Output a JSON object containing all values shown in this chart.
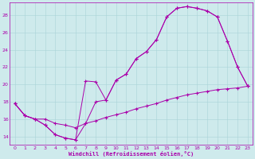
{
  "title": "",
  "xlabel": "Windchill (Refroidissement éolien,°C)",
  "xlim": [
    -0.5,
    23.5
  ],
  "ylim": [
    13.0,
    29.5
  ],
  "xticks": [
    0,
    1,
    2,
    3,
    4,
    5,
    6,
    7,
    8,
    9,
    10,
    11,
    12,
    13,
    14,
    15,
    16,
    17,
    18,
    19,
    20,
    21,
    22,
    23
  ],
  "yticks": [
    14,
    16,
    18,
    20,
    22,
    24,
    26,
    28
  ],
  "background_color": "#ceeaec",
  "grid_color": "#aad4d8",
  "line_color": "#aa00aa",
  "line1_x": [
    0,
    1,
    2,
    3,
    4,
    5,
    6,
    7,
    8,
    9,
    10,
    11,
    12,
    13,
    14,
    15,
    16,
    17,
    18,
    19,
    20,
    21,
    22,
    23
  ],
  "line1_y": [
    17.8,
    16.4,
    16.0,
    15.3,
    14.2,
    13.8,
    13.6,
    15.5,
    18.0,
    18.2,
    20.5,
    21.2,
    23.0,
    23.8,
    25.2,
    27.8,
    28.8,
    29.0,
    28.8,
    28.5,
    27.8,
    25.0,
    22.0,
    19.8
  ],
  "line2_x": [
    0,
    1,
    2,
    3,
    4,
    5,
    6,
    7,
    8,
    9,
    10,
    11,
    12,
    13,
    14,
    15,
    16,
    17,
    18,
    19,
    20,
    21,
    22,
    23
  ],
  "line2_y": [
    17.8,
    16.4,
    16.0,
    15.3,
    14.2,
    13.8,
    13.6,
    20.4,
    20.3,
    18.2,
    20.5,
    21.2,
    23.0,
    23.8,
    25.2,
    27.8,
    28.8,
    29.0,
    28.8,
    28.5,
    27.8,
    25.0,
    22.0,
    19.8
  ],
  "line3_x": [
    0,
    1,
    2,
    3,
    4,
    5,
    6,
    7,
    8,
    9,
    10,
    11,
    12,
    13,
    14,
    15,
    16,
    17,
    18,
    19,
    20,
    21,
    22,
    23
  ],
  "line3_y": [
    17.8,
    16.4,
    16.0,
    16.0,
    15.5,
    15.3,
    15.0,
    15.5,
    15.8,
    16.2,
    16.5,
    16.8,
    17.2,
    17.5,
    17.8,
    18.2,
    18.5,
    18.8,
    19.0,
    19.2,
    19.4,
    19.5,
    19.6,
    19.8
  ]
}
